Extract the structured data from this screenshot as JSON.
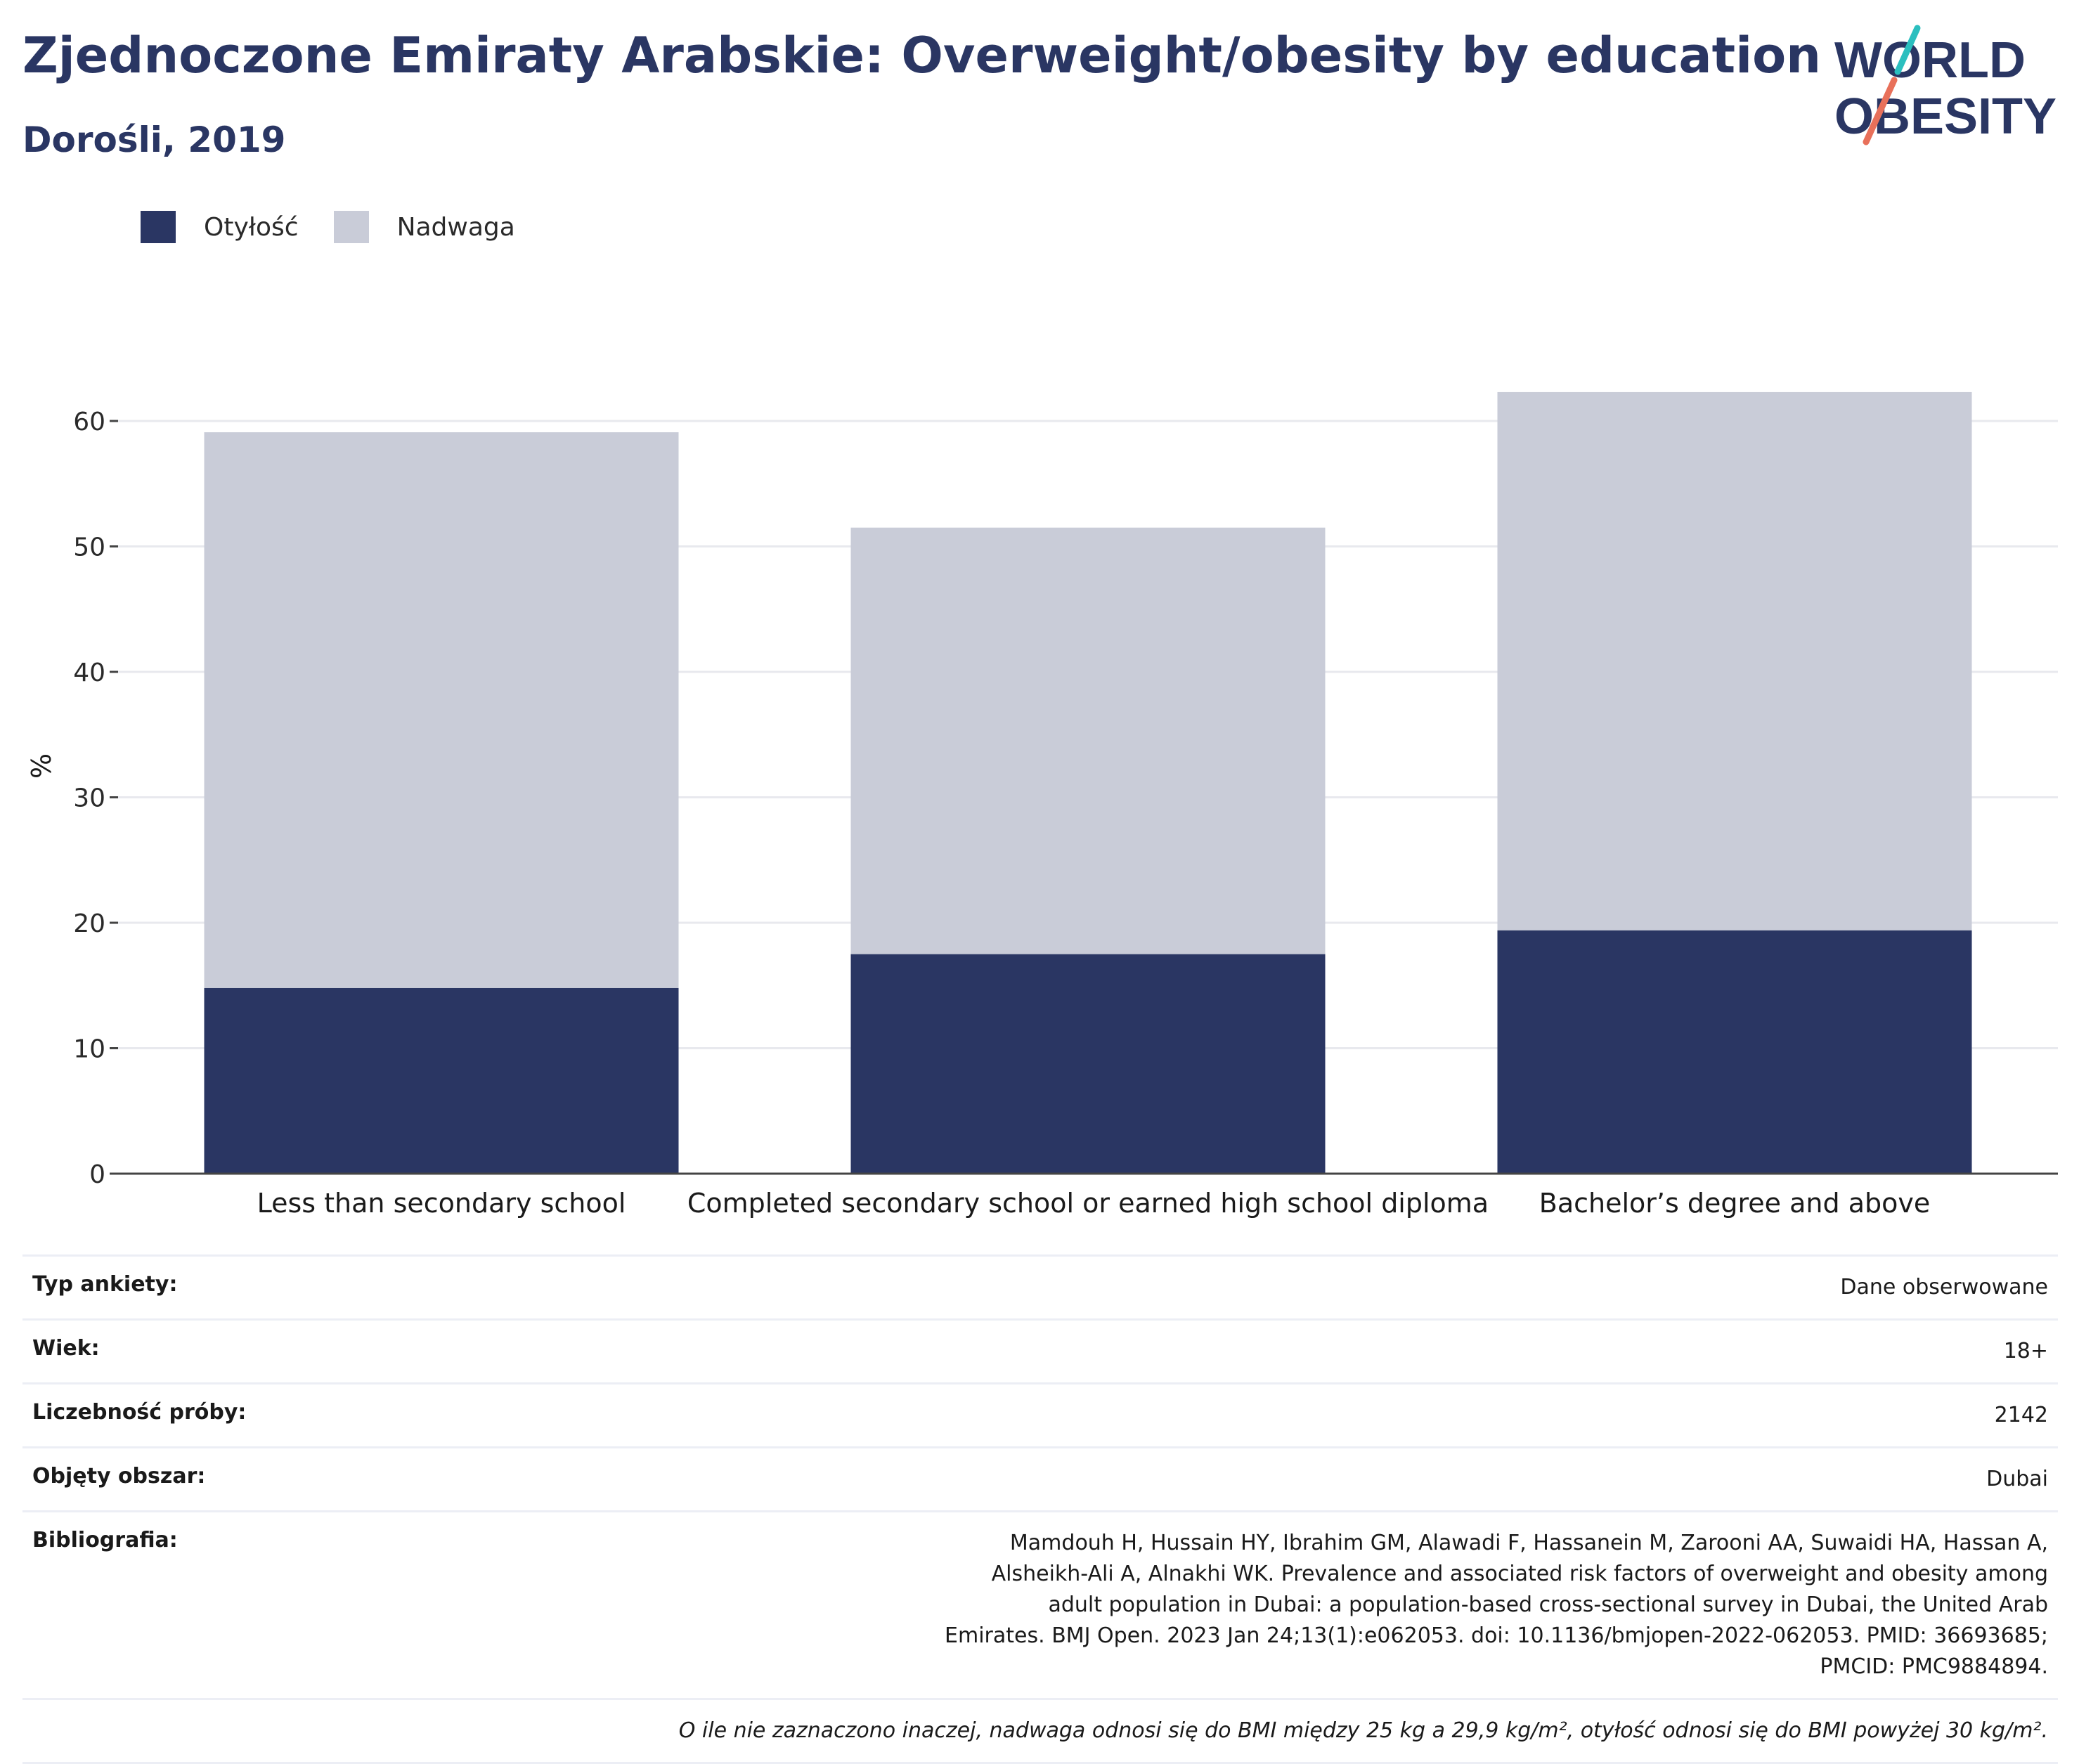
{
  "header": {
    "title": "Zjednoczone Emiraty Arabskie: Overweight/obesity by education",
    "subtitle": "Dorośli, 2019"
  },
  "logo": {
    "line1": "WORLD",
    "line2": "OBESITY",
    "colors": {
      "text": "#2a3663",
      "teal": "#2bbfbf",
      "coral": "#e8705a"
    }
  },
  "legend": [
    {
      "label": "Otyłość",
      "color": "#2a3663"
    },
    {
      "label": "Nadwaga",
      "color": "#c9ccd8"
    }
  ],
  "chart_data": {
    "type": "bar",
    "stacked": true,
    "categories": [
      "Less than secondary school",
      "Completed secondary school or earned  high school diploma",
      "Bachelor’s degree and above"
    ],
    "series": [
      {
        "name": "Otyłość",
        "values": [
          14.8,
          17.5,
          19.4
        ],
        "color": "#2a3663"
      },
      {
        "name": "Nadwaga",
        "values": [
          44.3,
          34.0,
          42.9
        ],
        "color": "#c9ccd8"
      }
    ],
    "ylabel": "%",
    "ylim": [
      0,
      65
    ],
    "yticks": [
      0,
      10,
      20,
      30,
      40,
      50,
      60
    ],
    "grid": true,
    "legend_position": "top-left"
  },
  "info": {
    "rows": [
      {
        "key": "Typ ankiety:",
        "value": "Dane obserwowane"
      },
      {
        "key": "Wiek:",
        "value": "18+"
      },
      {
        "key": "Liczebność próby:",
        "value": "2142"
      },
      {
        "key": "Objęty obszar:",
        "value": "Dubai"
      },
      {
        "key": "Bibliografia:",
        "value": "Mamdouh H, Hussain HY, Ibrahim GM, Alawadi F, Hassanein M, Zarooni AA, Suwaidi HA, Hassan A, Alsheikh-Ali A, Alnakhi WK. Prevalence and associated risk factors of overweight and obesity among adult population in Dubai: a population-based cross-sectional survey in Dubai, the United Arab Emirates. BMJ Open. 2023 Jan 24;13(1):e062053. doi: 10.1136/bmjopen-2022-062053. PMID: 36693685; PMCID: PMC9884894."
      }
    ],
    "note": "O ile nie zaznaczono inaczej, nadwaga odnosi się do BMI między 25 kg a 29,9 kg/m², otyłość odnosi się do BMI powyżej 30 kg/m²."
  }
}
